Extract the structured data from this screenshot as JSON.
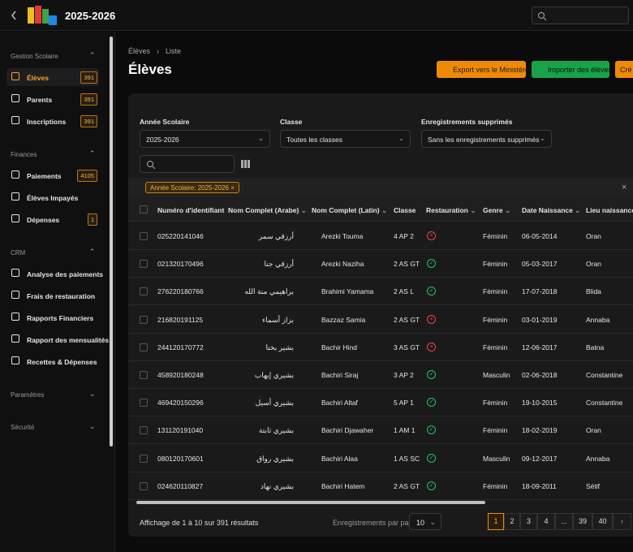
{
  "header": {
    "year": "2025-2026"
  },
  "sidebar": {
    "sections": [
      {
        "title": "Gestion Scolaire",
        "items": [
          {
            "label": "Élèves",
            "badge": 391,
            "active": true
          },
          {
            "label": "Parents",
            "badge": 391
          },
          {
            "label": "Inscriptions",
            "badge": 391
          }
        ]
      },
      {
        "title": "Finances",
        "items": [
          {
            "label": "Paiements",
            "badge": 4105
          },
          {
            "label": "Élèves Impayés"
          },
          {
            "label": "Dépenses",
            "badge": 1
          }
        ]
      },
      {
        "title": "CRM",
        "items": [
          {
            "label": "Analyse des paiements"
          },
          {
            "label": "Frais de restauration"
          },
          {
            "label": "Rapports Financiers"
          },
          {
            "label": "Rapport des mensualités"
          },
          {
            "label": "Recettes & Dépenses"
          }
        ]
      },
      {
        "title": "Paramètres",
        "items": []
      },
      {
        "title": "Sécurité",
        "items": []
      }
    ]
  },
  "breadcrumb": [
    "Élèves",
    "Liste"
  ],
  "page_title": "Élèves",
  "buttons": [
    "Export vers le Ministère",
    "Importer des élèves",
    "Cré"
  ],
  "filters": [
    {
      "label": "Année Scolaire",
      "value": "2025-2026"
    },
    {
      "label": "Classe",
      "value": "Toutes les classes"
    },
    {
      "label": "Enregistrements supprimés",
      "value": "Sans les enregistrements supprimés"
    }
  ],
  "active_filter": "Année Scolaire: 2025-2026",
  "table": {
    "columns": [
      "Numéro d'identifiant",
      "Nom Complet (Arabe)",
      "Nom Complet (Latin)",
      "Classe",
      "Restauration",
      "Genre",
      "Date Naissance",
      "Lieu naissance"
    ],
    "rows": [
      [
        "025220141046",
        "أرزقي سمر",
        "Arezki Touma",
        "4 AP 2",
        false,
        "Féminin",
        "06-05-2014",
        "Oran"
      ],
      [
        "021320170496",
        "أرزقي جنا",
        "Arezki Naziha",
        "2 AS GT",
        true,
        "Féminin",
        "05-03-2017",
        "Oran"
      ],
      [
        "276220180766",
        "براهيمي منة الله",
        "Brahimi Yamama",
        "2 AS L",
        true,
        "Féminin",
        "17-07-2018",
        "Blida"
      ],
      [
        "216820191125",
        "بزاز أسماء",
        "Bazzaz Samia",
        "2 AS GT",
        false,
        "Féminin",
        "03-01-2019",
        "Annaba"
      ],
      [
        "244120170772",
        "بشير بختا",
        "Bachir Hind",
        "3 AS GT",
        false,
        "Féminin",
        "12-06-2017",
        "Batna"
      ],
      [
        "458920180248",
        "بشيري إيهاب",
        "Bachiri Siraj",
        "3 AP 2",
        true,
        "Masculin",
        "02-06-2018",
        "Constantine"
      ],
      [
        "469420150296",
        "بشيري أسيل",
        "Bachiri Altaf",
        "5 AP 1",
        true,
        "Féminin",
        "19-10-2015",
        "Constantine"
      ],
      [
        "131120191040",
        "بشيري ثابتة",
        "Bachiri Djawaher",
        "1 AM 1",
        true,
        "Féminin",
        "18-02-2019",
        "Oran"
      ],
      [
        "080120170601",
        "بشيري رواق",
        "Bachiri Alaa",
        "1 AS SC",
        true,
        "Masculin",
        "09-12-2017",
        "Annaba"
      ],
      [
        "024620110827",
        "بشيري نهاد",
        "Bachiri Hatem",
        "2 AS GT",
        true,
        "Féminin",
        "18-09-2011",
        "Sétif"
      ]
    ]
  },
  "footer": {
    "summary": "Affichage de 1 à 10 sur 391 résultats",
    "per_page_label": "Enregistrements par page",
    "per_page": 10,
    "pages": [
      "1",
      "2",
      "3",
      "4",
      "...",
      "39",
      "40"
    ],
    "current_page": 0
  }
}
